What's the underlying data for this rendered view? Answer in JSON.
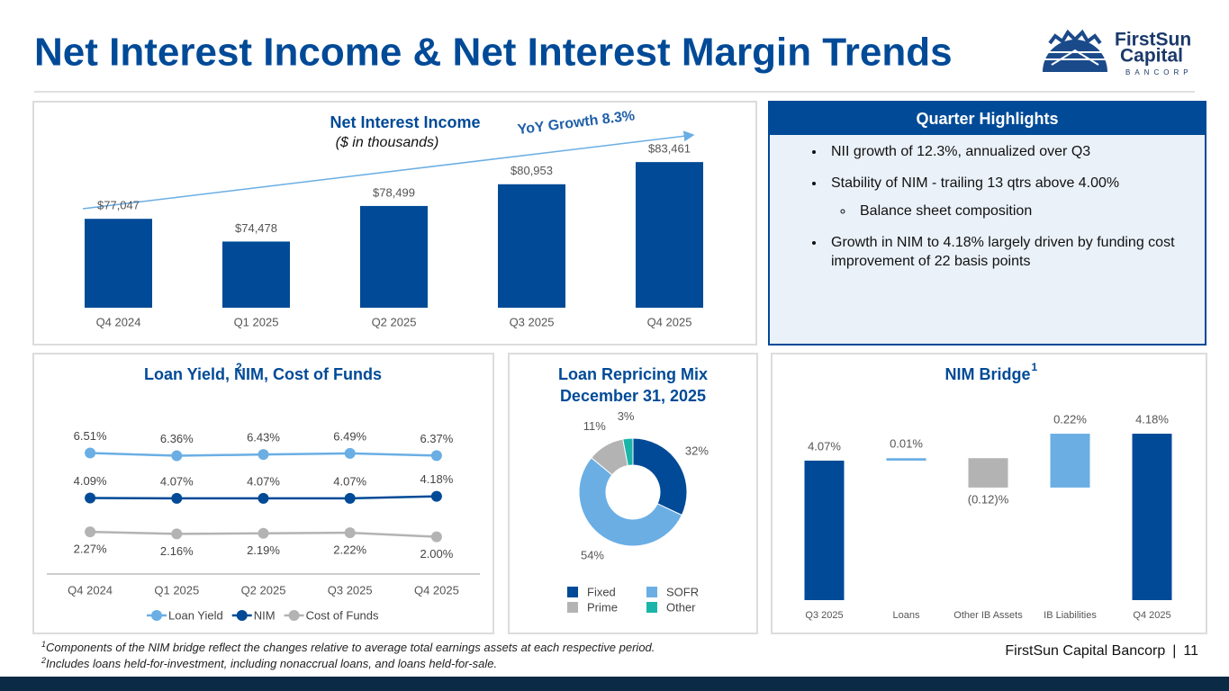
{
  "title": "Net Interest Income & Net Interest Margin Trends",
  "logo": {
    "line1": "FirstSun",
    "line2": "Capital",
    "line3": "BANCORP"
  },
  "chart_data": [
    {
      "type": "bar",
      "title": "Net Interest Income",
      "subtitle": "($ in thousands)",
      "annotation": "YoY Growth 8.3%",
      "categories": [
        "Q4 2024",
        "Q1 2025",
        "Q2 2025",
        "Q3 2025",
        "Q4 2025"
      ],
      "values": [
        77047,
        74478,
        78499,
        80953,
        83461
      ],
      "value_labels": [
        "$77,047",
        "$74,478",
        "$78,499",
        "$80,953",
        "$83,461"
      ],
      "color": "#004a97",
      "ylim": [
        67000,
        85000
      ]
    },
    {
      "type": "line",
      "title": "Loan Yield, NIM, Cost of Funds",
      "title_note": "2",
      "categories": [
        "Q4 2024",
        "Q1 2025",
        "Q2 2025",
        "Q3 2025",
        "Q4 2025"
      ],
      "series": [
        {
          "name": "Loan Yield",
          "color": "#6aaee4",
          "values": [
            6.51,
            6.36,
            6.43,
            6.49,
            6.37
          ],
          "value_labels": [
            "6.51%",
            "6.36%",
            "6.43%",
            "6.49%",
            "6.37%"
          ]
        },
        {
          "name": "NIM",
          "color": "#004a97",
          "values": [
            4.09,
            4.07,
            4.07,
            4.07,
            4.18
          ],
          "value_labels": [
            "4.09%",
            "4.07%",
            "4.07%",
            "4.07%",
            "4.18%"
          ]
        },
        {
          "name": "Cost of Funds",
          "color": "#b3b3b3",
          "values": [
            2.27,
            2.16,
            2.19,
            2.22,
            2.0
          ],
          "value_labels": [
            "2.27%",
            "2.16%",
            "2.19%",
            "2.22%",
            "2.00%"
          ]
        }
      ],
      "ylim": [
        0,
        7.5
      ]
    },
    {
      "type": "pie",
      "title": "Loan Repricing Mix",
      "subtitle": "December 31, 2025",
      "categories": [
        "Fixed",
        "SOFR",
        "Prime",
        "Other"
      ],
      "values": [
        32,
        54,
        11,
        3
      ],
      "value_labels": [
        "32%",
        "54%",
        "11%",
        "3%"
      ],
      "colors": [
        "#004a97",
        "#6aaee4",
        "#b3b3b3",
        "#1ab5a8"
      ]
    },
    {
      "type": "waterfall",
      "title": "NIM Bridge",
      "title_note": "1",
      "categories": [
        "Q3 2025",
        "Loans",
        "Other IB Assets",
        "IB Liabilities",
        "Q4 2025"
      ],
      "values": [
        4.07,
        0.01,
        -0.12,
        0.22,
        4.18
      ],
      "value_labels": [
        "4.07%",
        "0.01%",
        "(0.12)%",
        "0.22%",
        "4.18%"
      ],
      "colors": [
        "#004a97",
        "#6aaee4",
        "#b3b3b3",
        "#6aaee4",
        "#004a97"
      ],
      "ylim": [
        3.5,
        4.25
      ]
    }
  ],
  "highlights": {
    "title": "Quarter Highlights",
    "items": [
      {
        "text": "NII growth of 12.3%, annualized over Q3"
      },
      {
        "text": "Stability of NIM - trailing 13 qtrs above 4.00%",
        "subitems": [
          "Balance sheet composition"
        ]
      },
      {
        "text": "Growth in NIM to 4.18% largely driven by funding cost improvement of 22 basis points"
      }
    ]
  },
  "footnotes": [
    {
      "mark": "1",
      "text": "Components of the NIM bridge reflect the changes relative to average total earnings assets at each respective period."
    },
    {
      "mark": "2",
      "text": "Includes loans held-for-investment, including nonaccrual loans, and loans held-for-sale."
    }
  ],
  "footer": {
    "company": "FirstSun Capital Bancorp",
    "separator": "|",
    "page": "11"
  }
}
